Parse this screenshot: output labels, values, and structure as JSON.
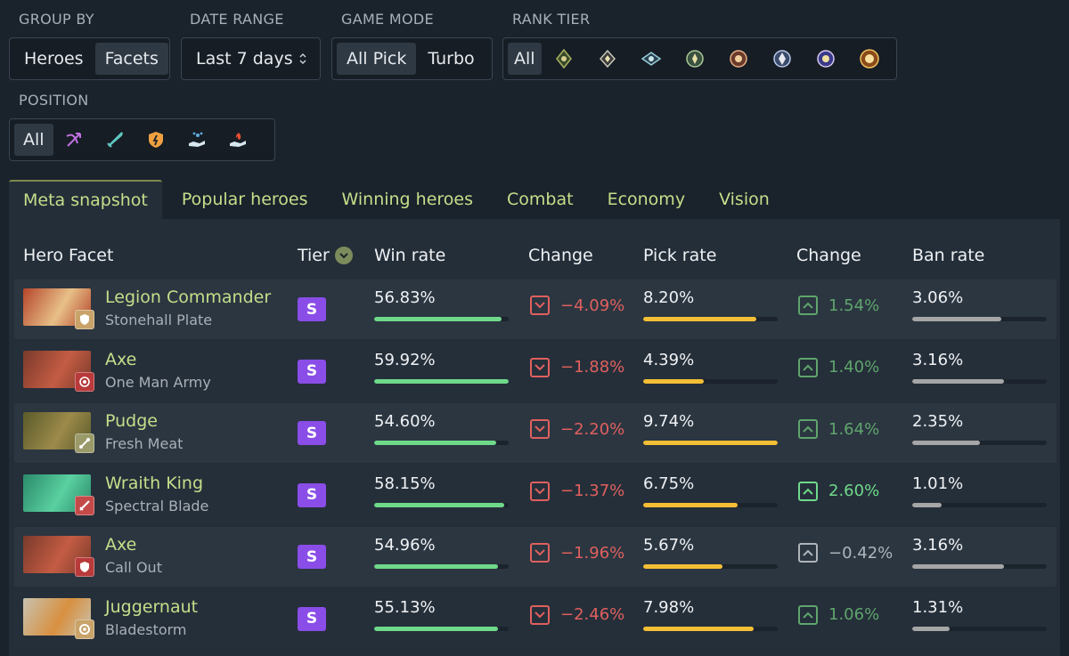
{
  "filters": {
    "group_by": {
      "label": "GROUP BY",
      "options": [
        "Heroes",
        "Facets"
      ],
      "selected": "Facets"
    },
    "date_range": {
      "label": "DATE RANGE",
      "value": "Last 7 days",
      "icon": "up-down-chevron-icon"
    },
    "game_mode": {
      "label": "GAME MODE",
      "options": [
        "All Pick",
        "Turbo"
      ],
      "selected": "All Pick"
    },
    "rank_tier": {
      "label": "RANK TIER",
      "all_label": "All",
      "icons": [
        "herald-rank-icon",
        "guardian-rank-icon",
        "crusader-rank-icon",
        "archon-rank-icon",
        "legend-rank-icon",
        "ancient-rank-icon",
        "divine-rank-icon",
        "immortal-rank-icon"
      ]
    },
    "position": {
      "label": "POSITION",
      "all_label": "All",
      "icons": [
        "carry-bow-icon",
        "mid-sword-icon",
        "offlane-shield-icon",
        "soft-support-hand-icon",
        "hard-support-hand-icon"
      ]
    }
  },
  "tabs": [
    "Meta snapshot",
    "Popular heroes",
    "Winning heroes",
    "Combat",
    "Economy",
    "Vision"
  ],
  "active_tab": "Meta snapshot",
  "columns": {
    "hero": "Hero Facet",
    "tier": "Tier",
    "win_rate": "Win rate",
    "win_change": "Change",
    "pick_rate": "Pick rate",
    "pick_change": "Change",
    "ban_rate": "Ban rate"
  },
  "colors": {
    "win_bar": "#6fd98a",
    "pick_bar": "#f5bf35",
    "ban_bar": "#a6a6a6",
    "negative": "#e0605e",
    "positive": "#5fa56c",
    "neutral": "#aeb4ba",
    "tier_s": "#8a4de8",
    "hero_name": "#c4df8a"
  },
  "rows": [
    {
      "hero": "Legion Commander",
      "facet": "Stonehall Plate",
      "tier": "S",
      "win_rate": "56.83%",
      "win_bar": 0.95,
      "win_change": "−4.09%",
      "win_dir": "down",
      "pick_rate": "8.20%",
      "pick_bar": 0.84,
      "pick_change": "1.54%",
      "pick_dir": "up",
      "ban_rate": "3.06%",
      "ban_bar": 0.66,
      "portrait_colors": [
        "#b4452a",
        "#e8c088"
      ],
      "badge_color": "#c9a36a",
      "badge_icon": "shield-facet-icon"
    },
    {
      "hero": "Axe",
      "facet": "One Man Army",
      "tier": "S",
      "win_rate": "59.92%",
      "win_bar": 1.0,
      "win_change": "−1.88%",
      "win_dir": "down",
      "pick_rate": "4.39%",
      "pick_bar": 0.45,
      "pick_change": "1.40%",
      "pick_dir": "up",
      "ban_rate": "3.16%",
      "ban_bar": 0.68,
      "portrait_colors": [
        "#7a3a2a",
        "#c45c44"
      ],
      "badge_color": "#b83a3a",
      "badge_icon": "swirl-facet-icon"
    },
    {
      "hero": "Pudge",
      "facet": "Fresh Meat",
      "tier": "S",
      "win_rate": "54.60%",
      "win_bar": 0.91,
      "win_change": "−2.20%",
      "win_dir": "down",
      "pick_rate": "9.74%",
      "pick_bar": 1.0,
      "pick_change": "1.64%",
      "pick_dir": "up",
      "ban_rate": "2.35%",
      "ban_bar": 0.5,
      "portrait_colors": [
        "#5a5a2a",
        "#9c8a4a"
      ],
      "badge_color": "#9a9a6a",
      "badge_icon": "bone-facet-icon"
    },
    {
      "hero": "Wraith King",
      "facet": "Spectral Blade",
      "tier": "S",
      "win_rate": "58.15%",
      "win_bar": 0.97,
      "win_change": "−1.37%",
      "win_dir": "down",
      "pick_rate": "6.75%",
      "pick_bar": 0.7,
      "pick_change": "2.60%",
      "pick_dir": "up_strong",
      "ban_rate": "1.01%",
      "ban_bar": 0.22,
      "portrait_colors": [
        "#2a8a6a",
        "#5ad0a0"
      ],
      "badge_color": "#c44a4a",
      "badge_icon": "sword-facet-icon"
    },
    {
      "hero": "Axe",
      "facet": "Call Out",
      "tier": "S",
      "win_rate": "54.96%",
      "win_bar": 0.92,
      "win_change": "−1.96%",
      "win_dir": "down",
      "pick_rate": "5.67%",
      "pick_bar": 0.59,
      "pick_change": "−0.42%",
      "pick_dir": "neutral",
      "ban_rate": "3.16%",
      "ban_bar": 0.68,
      "portrait_colors": [
        "#7a3a2a",
        "#c45c44"
      ],
      "badge_color": "#b83a3a",
      "badge_icon": "shield-facet-icon"
    },
    {
      "hero": "Juggernaut",
      "facet": "Bladestorm",
      "tier": "S",
      "win_rate": "55.13%",
      "win_bar": 0.92,
      "win_change": "−2.46%",
      "win_dir": "down",
      "pick_rate": "7.98%",
      "pick_bar": 0.82,
      "pick_change": "1.06%",
      "pick_dir": "up",
      "ban_rate": "1.31%",
      "ban_bar": 0.28,
      "portrait_colors": [
        "#c8c2b0",
        "#d89040"
      ],
      "badge_color": "#c9a36a",
      "badge_icon": "spin-facet-icon"
    }
  ]
}
